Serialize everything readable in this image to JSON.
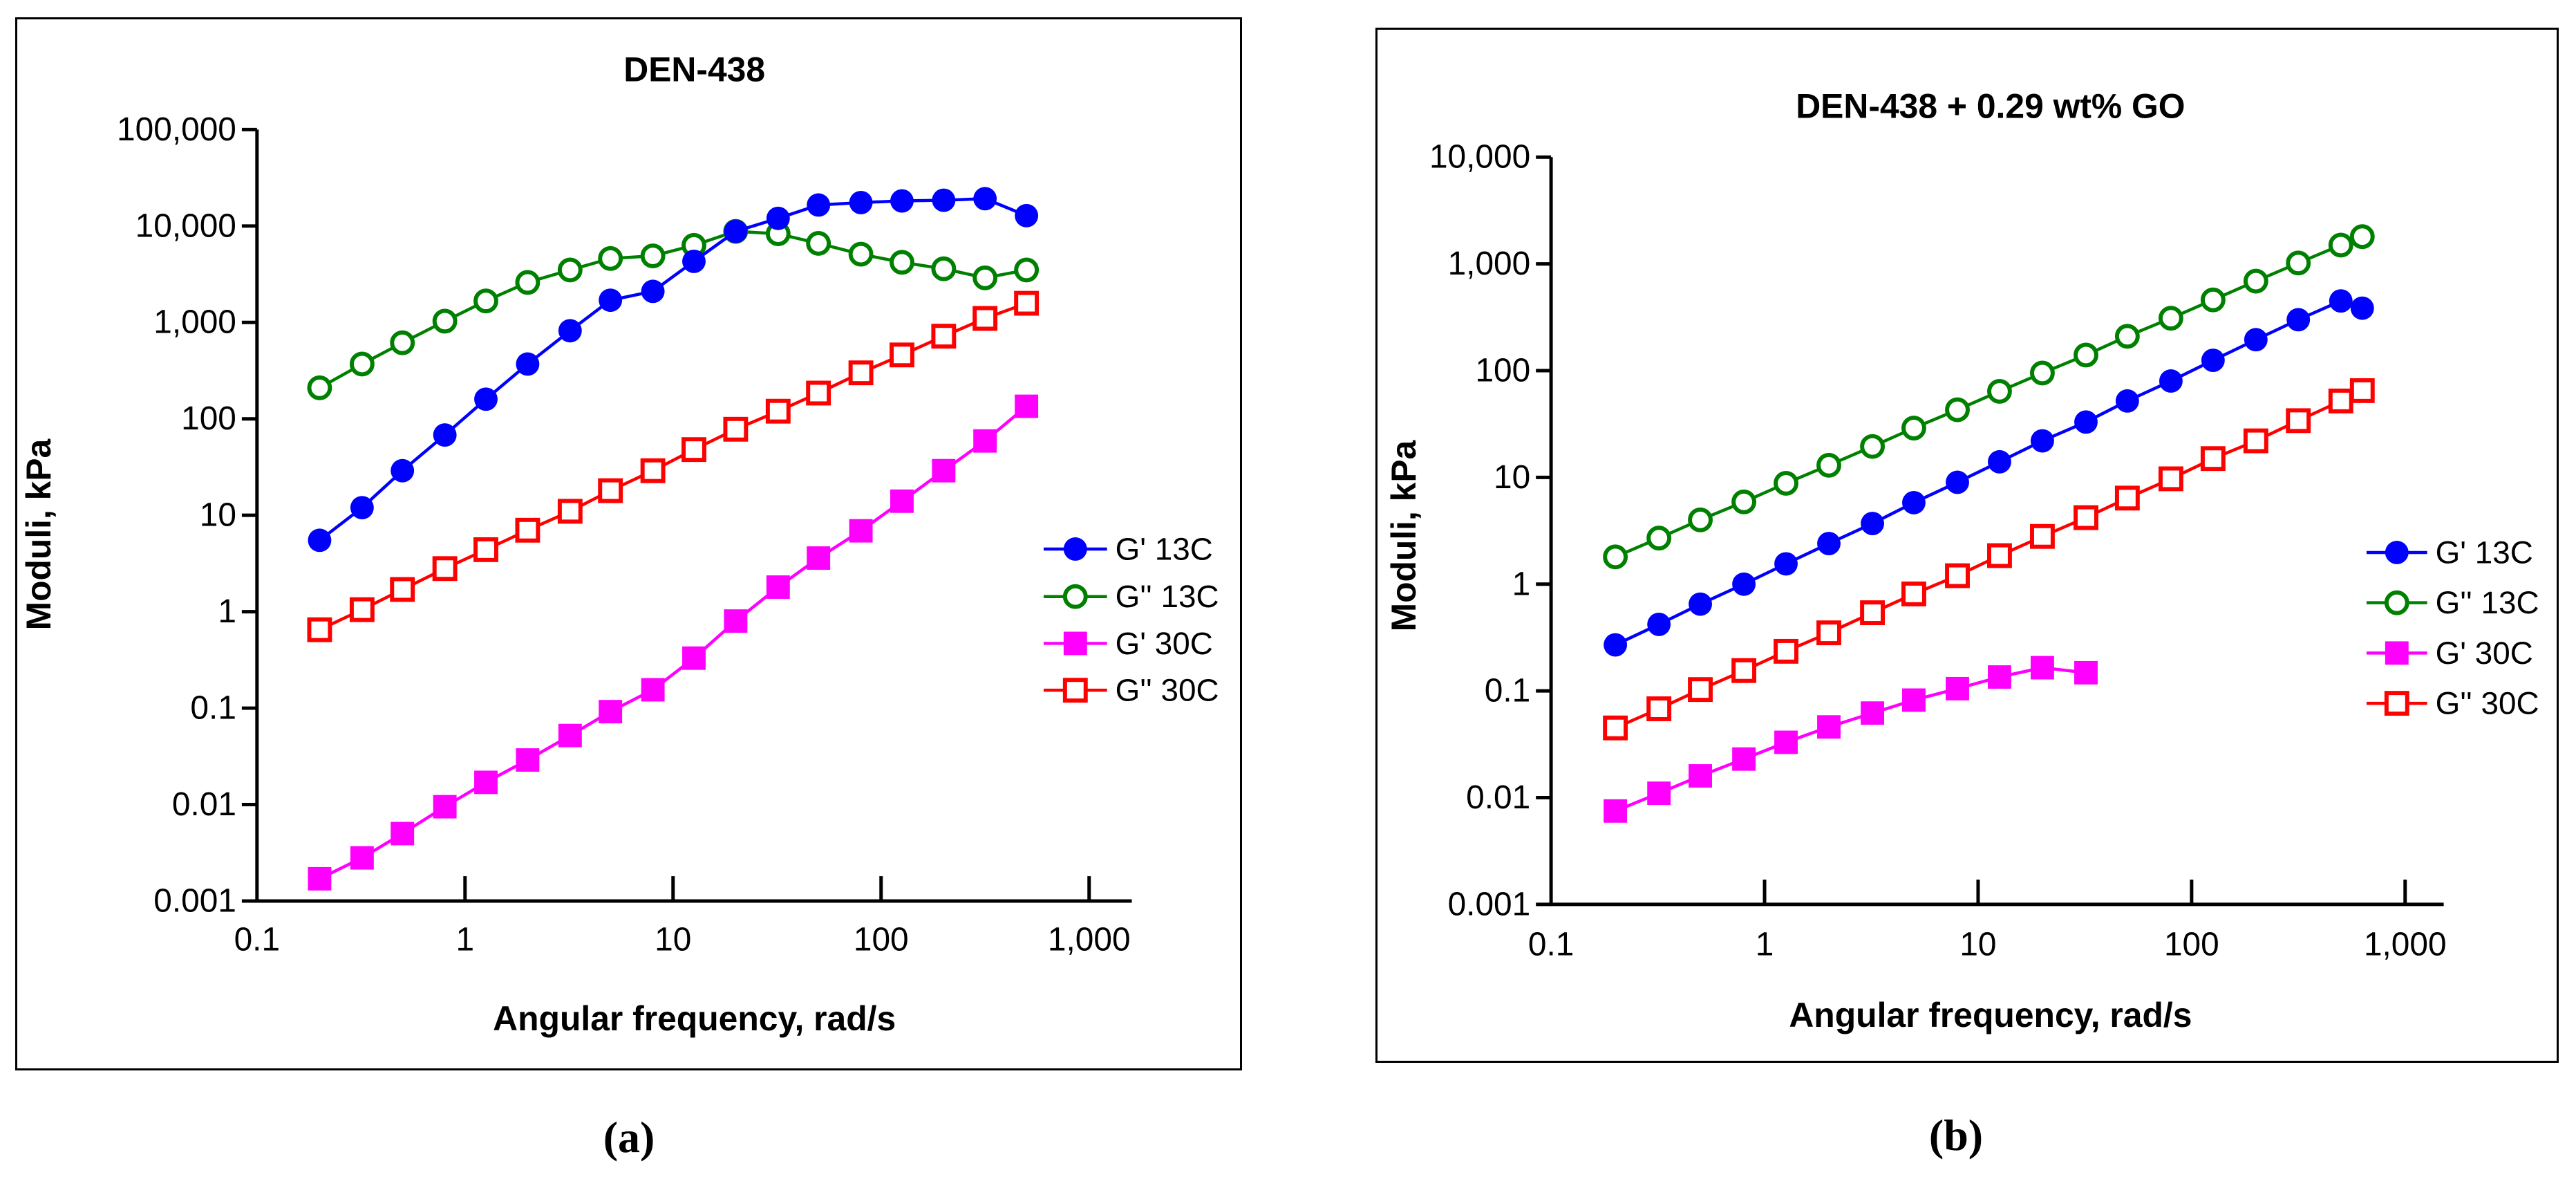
{
  "page": {
    "background": "#ffffff"
  },
  "captions": [
    "(a)",
    "(b)"
  ],
  "chart_data": [
    {
      "type": "line",
      "title": "DEN-438",
      "xlabel": "Angular frequency, rad/s",
      "ylabel": "Moduli, kPa",
      "xscale": "log",
      "yscale": "log",
      "xlim": [
        0.1,
        1000
      ],
      "ylim": [
        0.001,
        100000
      ],
      "x_tick_labels": [
        "0.1",
        "1",
        "10",
        "100",
        "1,000"
      ],
      "y_tick_labels": [
        "100,000",
        "10,000",
        "1,000",
        "100",
        "10",
        "1",
        "0.1",
        "0.01",
        "0.001"
      ],
      "grid": false,
      "legend_position": "right-middle",
      "series": [
        {
          "name": "G' 13C",
          "color": "#0000FF",
          "marker": "circle-filled",
          "x": [
            0.2,
            0.32,
            0.5,
            0.8,
            1.26,
            2,
            3.2,
            5,
            8,
            12.6,
            20,
            32,
            50,
            80,
            126,
            200,
            316,
            500
          ],
          "y": [
            5.5,
            12,
            29,
            68,
            160,
            370,
            820,
            1700,
            2100,
            4300,
            8800,
            12000,
            16500,
            17500,
            18200,
            18500,
            19200,
            12800
          ]
        },
        {
          "name": "G'' 13C",
          "color": "#008000",
          "marker": "circle-open",
          "x": [
            0.2,
            0.32,
            0.5,
            0.8,
            1.26,
            2,
            3.2,
            5,
            8,
            12.6,
            20,
            32,
            50,
            80,
            126,
            200,
            316,
            500
          ],
          "y": [
            210,
            370,
            615,
            1030,
            1670,
            2600,
            3500,
            4600,
            4900,
            6300,
            8800,
            8300,
            6600,
            5100,
            4200,
            3600,
            2900,
            3500
          ]
        },
        {
          "name": "G' 30C",
          "color": "#FF00FF",
          "marker": "square-filled",
          "x": [
            0.2,
            0.32,
            0.5,
            0.8,
            1.26,
            2,
            3.2,
            5,
            8,
            12.6,
            20,
            32,
            50,
            80,
            126,
            200,
            316,
            500
          ],
          "y": [
            0.0017,
            0.0028,
            0.005,
            0.0095,
            0.017,
            0.029,
            0.052,
            0.092,
            0.155,
            0.33,
            0.8,
            1.8,
            3.6,
            6.9,
            14,
            29,
            59,
            135
          ]
        },
        {
          "name": "G'' 30C",
          "color": "#FF0000",
          "marker": "square-open",
          "x": [
            0.2,
            0.32,
            0.5,
            0.8,
            1.26,
            2,
            3.2,
            5,
            8,
            12.6,
            20,
            32,
            50,
            80,
            126,
            200,
            316,
            500
          ],
          "y": [
            0.65,
            1.05,
            1.7,
            2.8,
            4.4,
            7.0,
            11,
            18,
            29,
            48,
            78,
            120,
            185,
            300,
            460,
            720,
            1100,
            1580
          ]
        }
      ]
    },
    {
      "type": "line",
      "title": "DEN-438 + 0.29 wt% GO",
      "xlabel": "Angular frequency, rad/s",
      "ylabel": "Moduli, kPa",
      "xscale": "log",
      "yscale": "log",
      "xlim": [
        0.1,
        1000
      ],
      "ylim": [
        0.001,
        10000
      ],
      "x_tick_labels": [
        "0.1",
        "1",
        "10",
        "100",
        "1,000"
      ],
      "y_tick_labels": [
        "10,000",
        "1,000",
        "100",
        "10",
        "1",
        "0.1",
        "0.01",
        "0.001"
      ],
      "grid": false,
      "legend_position": "right-middle",
      "series": [
        {
          "name": "G' 13C",
          "color": "#0000FF",
          "marker": "circle-filled",
          "x": [
            0.2,
            0.32,
            0.5,
            0.8,
            1.26,
            2,
            3.2,
            5,
            8,
            12.6,
            20,
            32,
            50,
            80,
            126,
            200,
            316,
            500,
            630
          ],
          "y": [
            0.27,
            0.42,
            0.65,
            1.0,
            1.55,
            2.4,
            3.7,
            5.8,
            9.0,
            14,
            22,
            33,
            52,
            80,
            125,
            195,
            300,
            450,
            385
          ]
        },
        {
          "name": "G'' 13C",
          "color": "#008000",
          "marker": "circle-open",
          "x": [
            0.2,
            0.32,
            0.5,
            0.8,
            1.26,
            2,
            3.2,
            5,
            8,
            12.6,
            20,
            32,
            50,
            80,
            126,
            200,
            316,
            500,
            630
          ],
          "y": [
            1.8,
            2.7,
            4.0,
            5.9,
            8.8,
            13,
            19.5,
            29,
            43,
            64,
            95,
            140,
            210,
            310,
            460,
            690,
            1020,
            1500,
            1800
          ]
        },
        {
          "name": "G' 30C",
          "color": "#FF00FF",
          "marker": "square-filled",
          "x": [
            0.2,
            0.32,
            0.5,
            0.8,
            1.26,
            2,
            3.2,
            5,
            8,
            12.6,
            20,
            32
          ],
          "y": [
            0.0075,
            0.011,
            0.016,
            0.023,
            0.033,
            0.046,
            0.062,
            0.082,
            0.105,
            0.135,
            0.165,
            0.148
          ]
        },
        {
          "name": "G'' 30C",
          "color": "#FF0000",
          "marker": "square-open",
          "x": [
            0.2,
            0.32,
            0.5,
            0.8,
            1.26,
            2,
            3.2,
            5,
            8,
            12.6,
            20,
            32,
            50,
            80,
            126,
            200,
            316,
            500,
            630
          ],
          "y": [
            0.045,
            0.068,
            0.103,
            0.155,
            0.235,
            0.35,
            0.54,
            0.81,
            1.2,
            1.85,
            2.8,
            4.2,
            6.4,
            9.7,
            15,
            22,
            34,
            52,
            65
          ]
        }
      ]
    }
  ]
}
